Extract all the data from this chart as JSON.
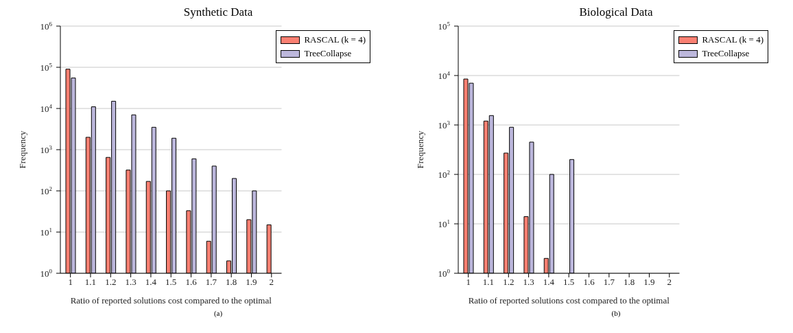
{
  "chart_data": [
    {
      "type": "bar",
      "title": "Synthetic Data",
      "xlabel": "Ratio of reported solutions cost compared to the optimal",
      "ylabel": "Frequency",
      "annotations": [
        "(a)"
      ],
      "categories": [
        "1",
        "1.1",
        "1.2",
        "1.3",
        "1.4",
        "1.5",
        "1.6",
        "1.7",
        "1.8",
        "1.9",
        "2"
      ],
      "series": [
        {
          "name": "RASCAL (k = 4)",
          "color": "#fa8072",
          "values": [
            90000,
            2000,
            650,
            320,
            170,
            100,
            33,
            6,
            2,
            20,
            15
          ]
        },
        {
          "name": "TreeCollapse",
          "color": "#bcb7dc",
          "values": [
            55000,
            11000,
            15000,
            7000,
            3500,
            1900,
            600,
            400,
            200,
            100,
            null
          ]
        }
      ],
      "log": "y",
      "ylim": [
        1,
        1000000
      ],
      "yticks": [
        {
          "value": 1,
          "label": "10$^{0}$"
        },
        {
          "value": 10,
          "label": "10$^{1}$"
        },
        {
          "value": 100,
          "label": "10$^{2}$"
        },
        {
          "value": 1000,
          "label": "10$^{3}$"
        },
        {
          "value": 10000,
          "label": "10$^{4}$"
        },
        {
          "value": 100000,
          "label": "10$^{5}$"
        },
        {
          "value": 1000000,
          "label": "10$^{6}$"
        }
      ],
      "grid": "y",
      "legend": "top right"
    },
    {
      "type": "bar",
      "title": "Biological Data",
      "xlabel": "Ratio of reported solutions cost compared to the optimal",
      "ylabel": "Frequency",
      "annotations": [
        "(b)"
      ],
      "categories": [
        "1",
        "1.1",
        "1.2",
        "1.3",
        "1.4",
        "1.5",
        "1.6",
        "1.7",
        "1.8",
        "1.9",
        "2"
      ],
      "series": [
        {
          "name": "RASCAL (k = 4)",
          "color": "#fa8072",
          "values": [
            8500,
            1200,
            270,
            14,
            2,
            null,
            null,
            null,
            null,
            null,
            null
          ]
        },
        {
          "name": "TreeCollapse",
          "color": "#bcb7dc",
          "values": [
            7000,
            1550,
            900,
            450,
            100,
            200,
            null,
            null,
            null,
            null,
            null
          ]
        }
      ],
      "log": "y",
      "ylim": [
        1,
        100000
      ],
      "yticks": [
        {
          "value": 1,
          "label": "10$^{0}$"
        },
        {
          "value": 10,
          "label": "10$^{1}$"
        },
        {
          "value": 100,
          "label": "10$^{2}$"
        },
        {
          "value": 1000,
          "label": "10$^{3}$"
        },
        {
          "value": 10000,
          "label": "10$^{4}$"
        },
        {
          "value": 100000,
          "label": "10$^{5}$"
        }
      ],
      "grid": "y",
      "legend": "top right"
    }
  ]
}
